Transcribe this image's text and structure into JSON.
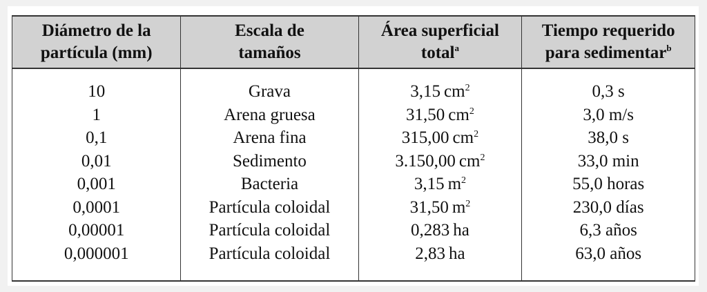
{
  "table": {
    "headers": [
      {
        "lines": [
          "Diámetro de la",
          "partícula (mm)"
        ],
        "sup": ""
      },
      {
        "lines": [
          "Escala de",
          "tamaños"
        ],
        "sup": ""
      },
      {
        "lines": [
          "Área superficial",
          "total"
        ],
        "sup": "a"
      },
      {
        "lines": [
          "Tiempo requerido",
          "para sedimentar"
        ],
        "sup": "b"
      }
    ],
    "diameters": [
      "10",
      "1",
      "0,1",
      "0,01",
      "0,001",
      "0,0001",
      "0,00001",
      "0,000001"
    ],
    "scales": [
      "Grava",
      "Arena gruesa",
      "Arena fina",
      "Sedimento",
      "Bacteria",
      "Partícula coloidal",
      "Partícula coloidal",
      "Partícula coloidal"
    ],
    "areas": [
      {
        "value": "3,15",
        "unit": "cm",
        "exp": "2"
      },
      {
        "value": "31,50",
        "unit": "cm",
        "exp": "2"
      },
      {
        "value": "315,00",
        "unit": "cm",
        "exp": "2"
      },
      {
        "value": "3.150,00",
        "unit": "cm",
        "exp": "2"
      },
      {
        "value": "3,15",
        "unit": "m",
        "exp": "2"
      },
      {
        "value": "31,50",
        "unit": "m",
        "exp": "2"
      },
      {
        "value": "0,283",
        "unit": "ha",
        "exp": ""
      },
      {
        "value": "2,83",
        "unit": "ha",
        "exp": ""
      }
    ],
    "times": [
      "0,3 s",
      "3,0 m/s",
      "38,0 s",
      "33,0 min",
      "55,0 horas",
      "230,0 días",
      "6,3 años",
      "63,0 años"
    ]
  }
}
